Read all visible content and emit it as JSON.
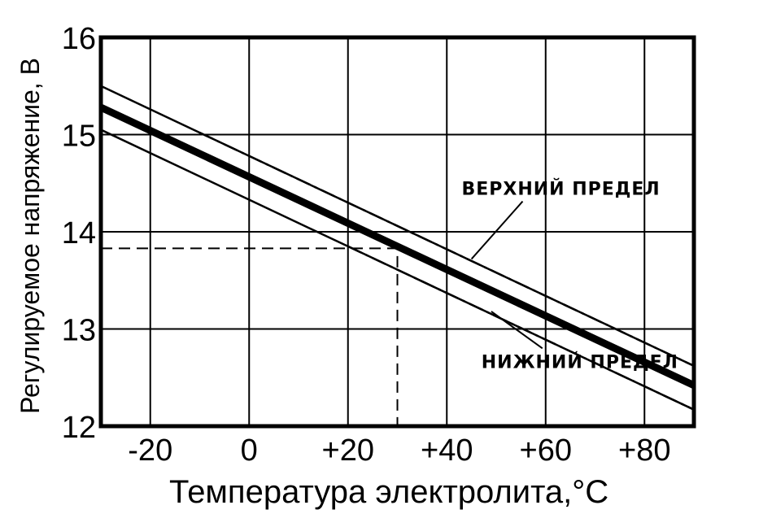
{
  "chart_data": {
    "type": "line",
    "xlabel": "Температура электролита,°С",
    "ylabel": "Регулируемое напряжение, В",
    "xlim": [
      -30,
      90
    ],
    "ylim": [
      12,
      16
    ],
    "x_ticks": [
      -20,
      0,
      20,
      40,
      60,
      80
    ],
    "x_tick_labels": [
      "-20",
      "0",
      "+20",
      "+40",
      "+60",
      "+80"
    ],
    "y_ticks": [
      12,
      13,
      14,
      15,
      16
    ],
    "y_tick_labels": [
      "12",
      "13",
      "14",
      "15",
      "16"
    ],
    "grid": true,
    "series": [
      {
        "style": "thick-solid",
        "x": [
          -30,
          90
        ],
        "y": [
          15.28,
          12.42
        ]
      },
      {
        "style": "solid",
        "x": [
          -30,
          -10,
          90
        ],
        "y": [
          15.5,
          15.02,
          12.62
        ]
      },
      {
        "style": "dash-dot",
        "x": [
          -10,
          90
        ],
        "y": [
          15.02,
          12.62
        ]
      },
      {
        "style": "solid",
        "x": [
          -30,
          20,
          90
        ],
        "y": [
          15.05,
          13.85,
          12.17
        ]
      },
      {
        "style": "dash-dot",
        "x": [
          20,
          90
        ],
        "y": [
          13.85,
          12.17
        ]
      }
    ],
    "reference_lines": [
      {
        "style": "dashed",
        "x": [
          -30,
          30,
          30
        ],
        "y": [
          13.83,
          13.83,
          12
        ]
      }
    ],
    "annotations": [
      {
        "text": "ВЕРХНИЙ  ПРЕДЕЛ",
        "x": 43,
        "y": 14.38,
        "arrow_to": [
          45,
          13.72
        ]
      },
      {
        "text": "НИЖНИЙ  ПРЕДЕЛ",
        "x": 47,
        "y": 12.6,
        "arrow_to": [
          49,
          13.18
        ]
      }
    ]
  }
}
